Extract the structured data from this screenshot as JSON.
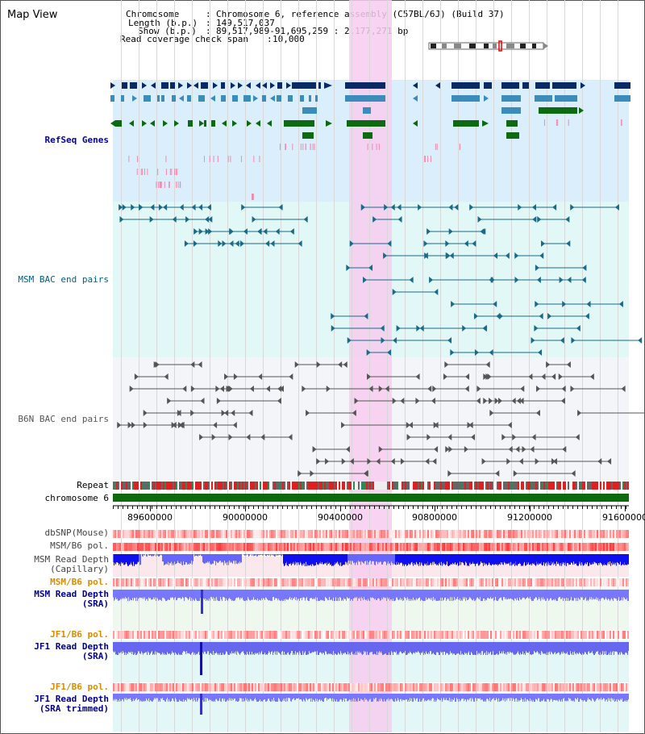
{
  "title": "Map View",
  "info": {
    "chromosome_label": "Chromosome",
    "chromosome_value": "Chromosome 6, reference assembly (C57BL/6J) (Build 37)",
    "length_label": "Length (b.p.)",
    "length_value": "149,517,037",
    "show_label": "Show (b.p.)",
    "show_value": "89,517,989-91,695,259 : 2,177,271 bp",
    "coverage_label": "Read coverage check span",
    "coverage_value": "10,000"
  },
  "tracks": {
    "refseq": "RefSeq Genes",
    "msm_bac": "MSM BAC end pairs",
    "b6n_bac": "B6N BAC end pairs",
    "repeat": "Repeat",
    "chromosome": "chromosome 6",
    "dbsnp": "dbSNP(Mouse)",
    "msm_b6_pol_1": "MSM/B6 pol.",
    "msm_read_depth_cap_1": "MSM Read Depth",
    "msm_read_depth_cap_2": "(Capillary)",
    "msm_b6_pol_2": "MSM/B6 pol.",
    "msm_read_depth_sra_1": "MSM Read Depth",
    "msm_read_depth_sra_2": "(SRA)",
    "jf1_b6_pol_1": "JF1/B6 pol.",
    "jf1_read_depth_sra_1": "JF1 Read Depth",
    "jf1_read_depth_sra_2": "(SRA)",
    "jf1_b6_pol_2": "JF1/B6 pol.",
    "jf1_read_depth_trim_1": "JF1 Read Depth",
    "jf1_read_depth_trim_2": "(SRA trimmed)"
  },
  "axis": {
    "ticks": [
      "89600000",
      "90000000",
      "90400000",
      "90800000",
      "91200000",
      "91600000"
    ]
  },
  "colors": {
    "refseq_bg": "#dbeefb",
    "msm_bg": "#e2f8f7",
    "b6n_bg": "#f3f5f9",
    "highlight": "#f7ccf0",
    "gene_dark": "#0a2a66",
    "gene_mid": "#3c8cbb",
    "gene_green": "#0e6a12",
    "msm_pair": "#1a6a8a",
    "b6n_pair": "#555555",
    "chromosome": "#0c6a0c",
    "depth_blue": "#4040ff"
  }
}
